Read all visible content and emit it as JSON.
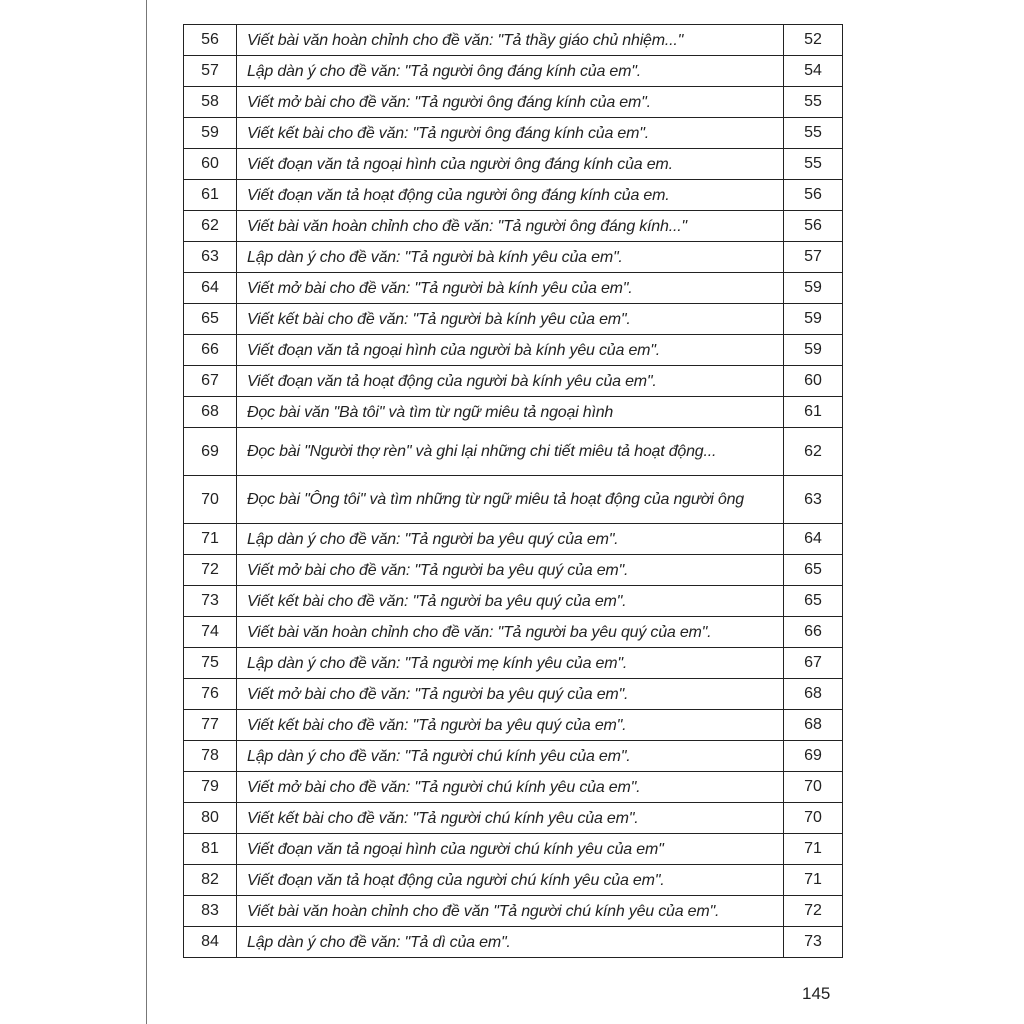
{
  "rows": [
    {
      "no": "56",
      "title": "Viết bài văn hoàn chỉnh cho đề văn: \"Tả thầy giáo chủ nhiệm...\"",
      "page": "52"
    },
    {
      "no": "57",
      "title": "Lập dàn ý cho đề văn: \"Tả người ông đáng kính của em\".",
      "page": "54"
    },
    {
      "no": "58",
      "title": "Viết mở bài cho đề văn: \"Tả người ông đáng kính của em\".",
      "page": "55"
    },
    {
      "no": "59",
      "title": "Viết kết bài cho đề văn: \"Tả người ông đáng kính của em\".",
      "page": "55"
    },
    {
      "no": "60",
      "title": "Viết đoạn văn tả ngoại hình của người ông đáng kính của em.",
      "page": "55"
    },
    {
      "no": "61",
      "title": "Viết đoạn văn tả hoạt động của người ông đáng kính của em.",
      "page": "56"
    },
    {
      "no": "62",
      "title": "Viết bài văn hoàn chỉnh cho đề văn: \"Tả người ông đáng kính...\"",
      "page": "56"
    },
    {
      "no": "63",
      "title": "Lập dàn ý cho đề văn: \"Tả người bà kính yêu của em\".",
      "page": "57"
    },
    {
      "no": "64",
      "title": "Viết mở bài cho đề văn: \"Tả người bà kính yêu của em\".",
      "page": "59"
    },
    {
      "no": "65",
      "title": "Viết kết bài cho đề văn: \"Tả người bà kính yêu của em\".",
      "page": "59"
    },
    {
      "no": "66",
      "title": "Viết đoạn văn tả ngoại hình của người bà kính yêu của em\".",
      "page": "59"
    },
    {
      "no": "67",
      "title": "Viết đoạn văn tả hoạt động của người bà kính yêu của em\".",
      "page": "60"
    },
    {
      "no": "68",
      "title": "Đọc bài văn \"Bà tôi\" và tìm từ ngữ miêu tả ngoại hình",
      "page": "61"
    },
    {
      "no": "69",
      "title": "Đọc bài \"Người thợ rèn\" và ghi lại những chi tiết miêu tả hoạt động...",
      "page": "62"
    },
    {
      "no": "70",
      "title": "Đọc bài \"Ông tôi\" và tìm những từ ngữ miêu tả hoạt động của người ông",
      "page": "63"
    },
    {
      "no": "71",
      "title": "Lập dàn ý cho đề văn: \"Tả người ba yêu quý của em\".",
      "page": "64"
    },
    {
      "no": "72",
      "title": "Viết mở bài cho đề văn: \"Tả người ba yêu quý của em\".",
      "page": "65"
    },
    {
      "no": "73",
      "title": "Viết kết bài cho đề văn: \"Tả người ba yêu quý của em\".",
      "page": "65"
    },
    {
      "no": "74",
      "title": "Viết bài văn hoàn chỉnh cho đề văn: \"Tả người ba yêu quý của em\".",
      "page": "66"
    },
    {
      "no": "75",
      "title": "Lập dàn ý cho đề văn: \"Tả người mẹ kính yêu của em\".",
      "page": "67"
    },
    {
      "no": "76",
      "title": "Viết mở bài cho đề văn: \"Tả người ba yêu quý của em\".",
      "page": "68"
    },
    {
      "no": "77",
      "title": "Viết kết bài cho đề văn: \"Tả người ba yêu quý của em\".",
      "page": "68"
    },
    {
      "no": "78",
      "title": "Lập dàn ý cho đề văn: \"Tả người chú kính yêu của em\".",
      "page": "69"
    },
    {
      "no": "79",
      "title": "Viết mở bài cho đề văn: \"Tả người chú kính yêu của em\".",
      "page": "70"
    },
    {
      "no": "80",
      "title": "Viết kết bài cho đề văn: \"Tả người chú kính yêu của em\".",
      "page": "70"
    },
    {
      "no": "81",
      "title": "Viết đoạn văn tả ngoại hình của người chú kính yêu của em\"",
      "page": "71"
    },
    {
      "no": "82",
      "title": "Viết đoạn văn tả hoạt động của người chú kính yêu của em\".",
      "page": "71"
    },
    {
      "no": "83",
      "title": "Viết bài văn hoàn chỉnh cho đề văn \"Tả người chú kính yêu của em\".",
      "page": "72"
    },
    {
      "no": "84",
      "title": "Lập dàn ý cho đề văn: \"Tả dì của em\".",
      "page": "73"
    }
  ],
  "page_number": "145"
}
